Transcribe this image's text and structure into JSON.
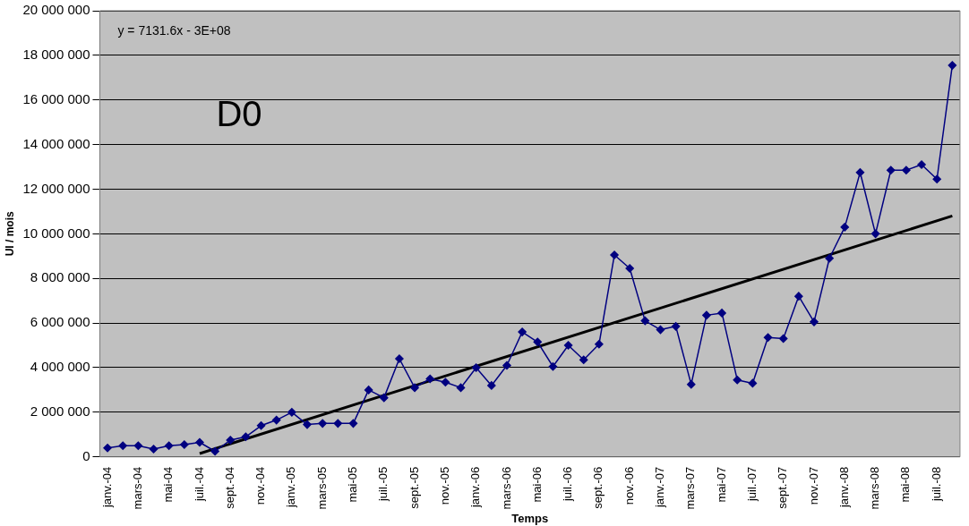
{
  "chart_data": {
    "type": "line",
    "xlabel": "Temps",
    "ylabel": "UI / mois",
    "annotations": [
      "y = 7131.6x - 3E+08",
      "D0"
    ],
    "categories": [
      "janv.-04",
      null,
      "mars-04",
      null,
      "mai-04",
      null,
      "juil.-04",
      null,
      "sept.-04",
      null,
      "nov.-04",
      null,
      "janv.-05",
      null,
      "mars-05",
      null,
      "mai-05",
      null,
      "juil.-05",
      null,
      "sept.-05",
      null,
      "nov.-05",
      null,
      "janv.-06",
      null,
      "mars-06",
      null,
      "mai-06",
      null,
      "juil.-06",
      null,
      "sept.-06",
      null,
      "nov.-06",
      null,
      "janv.-07",
      null,
      "mars-07",
      null,
      "mai-07",
      null,
      "juil.-07",
      null,
      "sept.-07",
      null,
      "nov.-07",
      null,
      "janv.-08",
      null,
      "mars-08",
      null,
      "mai-08",
      null,
      "juil.-08",
      null
    ],
    "series": [
      {
        "color": "#000080",
        "marker": "diamond",
        "values": [
          400000,
          500000,
          500000,
          350000,
          500000,
          550000,
          650000,
          250000,
          750000,
          900000,
          1400000,
          1650000,
          2000000,
          1450000,
          1500000,
          1500000,
          1500000,
          3000000,
          2650000,
          4400000,
          3100000,
          3500000,
          3350000,
          3100000,
          4000000,
          3200000,
          4100000,
          5600000,
          5150000,
          4050000,
          5000000,
          4350000,
          5050000,
          9050000,
          8450000,
          6100000,
          5700000,
          5850000,
          3250000,
          6350000,
          6450000,
          3450000,
          3300000,
          5350000,
          5300000,
          7200000,
          6050000,
          8900000,
          10300000,
          12750000,
          10000000,
          12850000,
          12850000,
          13100000,
          12450000,
          17550000
        ]
      },
      {
        "type": "line",
        "color": "#000000",
        "marker": "none",
        "values": [
          null,
          null,
          null,
          null,
          null,
          null,
          150000,
          null,
          null,
          null,
          null,
          null,
          null,
          null,
          null,
          null,
          null,
          null,
          null,
          null,
          null,
          null,
          null,
          null,
          null,
          null,
          null,
          null,
          null,
          null,
          null,
          null,
          null,
          null,
          null,
          null,
          null,
          null,
          null,
          null,
          null,
          null,
          null,
          null,
          null,
          null,
          null,
          null,
          null,
          null,
          null,
          null,
          null,
          null,
          null,
          10800000
        ]
      }
    ],
    "ylim": [
      0,
      20000000
    ],
    "yticks": [
      {
        "value": 0,
        "label": "0"
      },
      {
        "value": 2000000,
        "label": "2 000 000"
      },
      {
        "value": 4000000,
        "label": "4 000 000"
      },
      {
        "value": 6000000,
        "label": "6 000 000"
      },
      {
        "value": 8000000,
        "label": "8 000 000"
      },
      {
        "value": 10000000,
        "label": "10 000 000"
      },
      {
        "value": 12000000,
        "label": "12 000 000"
      },
      {
        "value": 14000000,
        "label": "14 000 000"
      },
      {
        "value": 16000000,
        "label": "16 000 000"
      },
      {
        "value": 18000000,
        "label": "18 000 000"
      },
      {
        "value": 20000000,
        "label": "20 000 000"
      }
    ],
    "grid": "y",
    "legend": false
  }
}
